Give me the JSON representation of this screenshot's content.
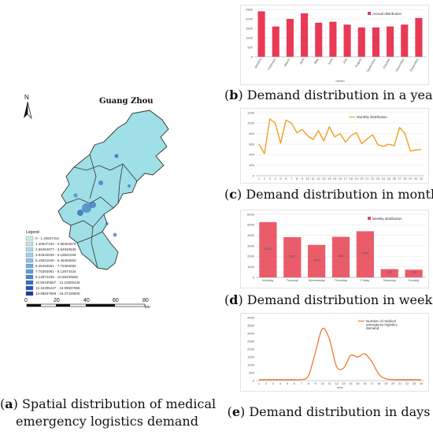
{
  "captions": {
    "a_label": "a",
    "a_line1": " Spatial distribution of medical",
    "a_line2": "emergency logistics demand",
    "b_label": "b",
    "b_text": " Demand distribution in a year",
    "c_label": "c",
    "c_text": " Demand distribution in months",
    "d_label": "d",
    "d_text": " Demand distribution in weeks",
    "e_label": "e",
    "e_text": " Demand distribution in days"
  },
  "map": {
    "title": "Guang Zhou",
    "north": "N",
    "legend_title": "Legend",
    "legend_items": [
      "0 - 1.40847151",
      "1.40847152 - 2.58454876",
      "2.58454877 - 3.94940538",
      "3.94940539 - 5.19921039",
      "5.19921040 - 6.46493550",
      "6.46493551 - 7.75393090",
      "7.75393091 - 9.13974434",
      "9.13974435 - 10.59430656",
      "10.59430657 - 12.10305436",
      "12.10305437 - 13.99837958",
      "13.99837959 - 16.37428800"
    ],
    "legend_colors": [
      "#cdeaf0",
      "#bfe2ee",
      "#afd9ea",
      "#9ccfe7",
      "#86c2e2",
      "#6fb1dc",
      "#5a9ed6",
      "#4787ce",
      "#3570c4",
      "#2456b5",
      "#163d9c"
    ],
    "scale_labels": [
      "0",
      "20",
      "40",
      "60",
      "80"
    ],
    "scale_unit": "km",
    "fill_color": "#9fdfe6"
  },
  "chart_data": [
    {
      "id": "b",
      "type": "bar",
      "title": "",
      "xlabel": "month",
      "ylabel": "",
      "categories": [
        "January",
        "February",
        "March",
        "April",
        "May",
        "June",
        "July",
        "August",
        "September",
        "October",
        "November",
        "December"
      ],
      "series": [
        {
          "name": "Annual distribution",
          "values": [
            2400,
            1600,
            2000,
            2300,
            1800,
            1850,
            1700,
            1550,
            1550,
            1600,
            1700,
            2050
          ]
        }
      ],
      "ylim": [
        0,
        2500
      ],
      "yticks": [
        0,
        500,
        1000,
        1500,
        2000,
        2500
      ],
      "color": "#e83a55",
      "legend": "top-right",
      "grid": true
    },
    {
      "id": "c",
      "type": "line",
      "title": "",
      "xlabel": "",
      "ylabel": "",
      "x": [
        1,
        2,
        3,
        4,
        5,
        6,
        7,
        8,
        9,
        10,
        11,
        12,
        13,
        14,
        15,
        16,
        17,
        18,
        19,
        20,
        21,
        22,
        23,
        24,
        25,
        26,
        27,
        28,
        29,
        30,
        31
      ],
      "series": [
        {
          "name": "Monthly distribution",
          "values": [
            600,
            420,
            1080,
            1000,
            620,
            1060,
            1000,
            820,
            880,
            760,
            690,
            860,
            660,
            930,
            740,
            800,
            640,
            760,
            820,
            610,
            700,
            780,
            590,
            560,
            600,
            570,
            920,
            800,
            470,
            490,
            500
          ]
        }
      ],
      "ylim": [
        0,
        1200
      ],
      "yticks": [
        0,
        200,
        400,
        600,
        800,
        1000,
        1200
      ],
      "color": "#f0a020",
      "legend": "top-right",
      "grid": true
    },
    {
      "id": "d",
      "type": "bar",
      "title": "",
      "xlabel": "",
      "ylabel": "",
      "categories": [
        "Monday",
        "Tuesday",
        "Wednesday",
        "Thursday",
        "Friday",
        "Saturday",
        "Sunday"
      ],
      "series": [
        {
          "name": "Weekly distribution",
          "values": [
            5265,
            3831,
            3094,
            3863,
            4393,
            789,
            735
          ]
        }
      ],
      "data_labels": [
        "5265",
        "3831",
        "3094",
        "3863",
        "4393",
        "789",
        "735"
      ],
      "ylim": [
        0,
        6000
      ],
      "yticks": [
        0,
        1000,
        2000,
        3000,
        4000,
        5000,
        6000
      ],
      "color": "#e84a5a",
      "legend": "top-right",
      "grid": true
    },
    {
      "id": "e",
      "type": "line",
      "title": "",
      "xlabel": "time",
      "ylabel": "",
      "x": [
        1,
        2,
        3,
        4,
        5,
        6,
        7,
        8,
        9,
        10,
        11,
        12,
        13,
        14,
        15,
        16,
        17,
        18,
        19,
        20,
        21,
        22,
        23,
        24
      ],
      "series": [
        {
          "name": "Number of medical emergency logistics demand",
          "values": [
            60,
            60,
            60,
            60,
            60,
            60,
            70,
            300,
            1800,
            3300,
            2600,
            900,
            800,
            1600,
            1500,
            1700,
            1200,
            400,
            120,
            70,
            60,
            60,
            60,
            60
          ]
        }
      ],
      "ylim": [
        0,
        4000
      ],
      "yticks": [
        0,
        500,
        1000,
        1500,
        2000,
        2500,
        3000,
        3500,
        4000
      ],
      "color": "#f07a30",
      "legend": "top-right",
      "grid": false
    }
  ]
}
